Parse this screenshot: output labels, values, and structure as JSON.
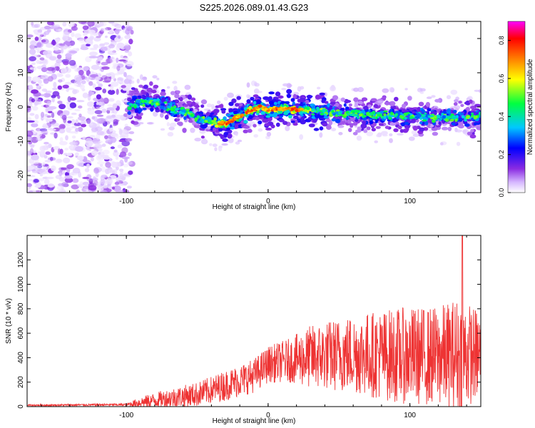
{
  "title": "S225.2026.089.01.43.G23",
  "chart_data": [
    {
      "type": "heatmap",
      "title": "",
      "xlabel": "Height of straight line (km)",
      "ylabel": "Frequency (Hz)",
      "xlim": [
        -170,
        150
      ],
      "ylim": [
        -25,
        25
      ],
      "xticks": [
        -100,
        0,
        100
      ],
      "yticks": [
        -20,
        -10,
        0,
        10,
        20
      ],
      "xtick_labels": [
        "-100",
        "0",
        "100"
      ],
      "ytick_labels": [
        "-20",
        "-10",
        "0",
        "10",
        "20"
      ],
      "ridge": {
        "description_points": [
          {
            "x": -98,
            "y": 0
          },
          {
            "x": -85,
            "y": 2
          },
          {
            "x": -70,
            "y": 0
          },
          {
            "x": -55,
            "y": -2
          },
          {
            "x": -45,
            "y": -4
          },
          {
            "x": -30,
            "y": -5
          },
          {
            "x": -22,
            "y": -3
          },
          {
            "x": -12,
            "y": -1
          },
          {
            "x": -5,
            "y": 0
          },
          {
            "x": 0,
            "y": -1
          },
          {
            "x": 10,
            "y": -0.5
          },
          {
            "x": 30,
            "y": -1
          },
          {
            "x": 60,
            "y": -2
          },
          {
            "x": 90,
            "y": -2.5
          },
          {
            "x": 120,
            "y": -3
          },
          {
            "x": 150,
            "y": -3
          }
        ],
        "noise_region_xmax": -98
      },
      "colorbar": {
        "label": "Normalized spectral amplitude",
        "range": [
          0,
          0.9
        ],
        "ticks": [
          "0.0",
          "0.2",
          "0.4",
          "0.6",
          "0.8"
        ],
        "tick_values": [
          0,
          0.2,
          0.4,
          0.6,
          0.8
        ],
        "colors": [
          "#ffffff",
          "#d6b8ff",
          "#8a2be2",
          "#0000ff",
          "#00c8ff",
          "#00ff40",
          "#ffff00",
          "#ff8000",
          "#ff0000",
          "#ff00ff"
        ]
      }
    },
    {
      "type": "line",
      "title": "",
      "xlabel": "Height of straight line (km)",
      "ylabel": "SNR (10 * v/v)",
      "xlim": [
        -170,
        150
      ],
      "ylim": [
        0,
        1400
      ],
      "xticks": [
        -100,
        0,
        100
      ],
      "yticks": [
        0,
        200,
        400,
        600,
        800,
        1000,
        1200
      ],
      "xtick_labels": [
        "-100",
        "0",
        "100"
      ],
      "ytick_labels": [
        "0",
        "200",
        "400",
        "600",
        "800",
        "1000",
        "1200"
      ],
      "line_color": "#ee3333",
      "envelope": [
        {
          "x": -170,
          "base": 10,
          "amp": 15
        },
        {
          "x": -100,
          "base": 15,
          "amp": 20
        },
        {
          "x": -90,
          "base": 30,
          "amp": 90
        },
        {
          "x": -70,
          "base": 60,
          "amp": 160
        },
        {
          "x": -50,
          "base": 90,
          "amp": 200
        },
        {
          "x": -30,
          "base": 160,
          "amp": 250
        },
        {
          "x": -10,
          "base": 240,
          "amp": 280
        },
        {
          "x": 0,
          "base": 330,
          "amp": 300
        },
        {
          "x": 15,
          "base": 360,
          "amp": 360
        },
        {
          "x": 30,
          "base": 380,
          "amp": 520
        },
        {
          "x": 60,
          "base": 400,
          "amp": 650
        },
        {
          "x": 90,
          "base": 380,
          "amp": 780
        },
        {
          "x": 120,
          "base": 370,
          "amp": 820
        },
        {
          "x": 135,
          "base": 380,
          "amp": 950
        },
        {
          "x": 150,
          "base": 390,
          "amp": 700
        }
      ],
      "peak": {
        "x": 137,
        "y": 1400
      }
    }
  ]
}
